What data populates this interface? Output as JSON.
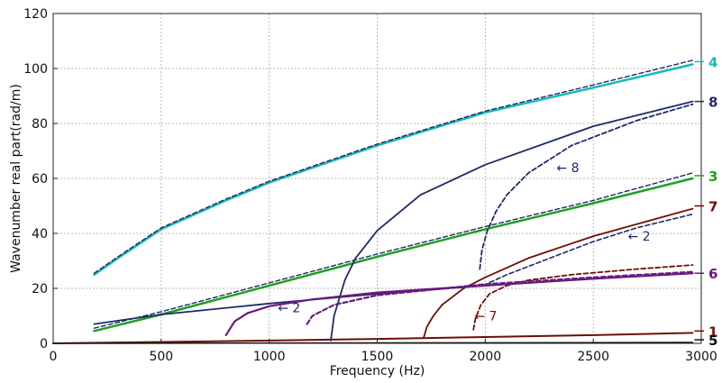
{
  "chart_data": {
    "type": "line",
    "title": "",
    "xlabel": "Frequency (Hz)",
    "ylabel": "Wavenumber real part(rad/m)",
    "xlim": [
      0,
      3000
    ],
    "ylim": [
      0,
      120
    ],
    "xticks": [
      0,
      500,
      1000,
      1500,
      2000,
      2500,
      3000
    ],
    "yticks": [
      0,
      20,
      40,
      60,
      80,
      100,
      120
    ],
    "grid": true,
    "legend": "none",
    "series": [
      {
        "key": "m4",
        "color": "#18b8b8",
        "width": 2.5,
        "dash": false,
        "x": [
          190,
          300,
          500,
          800,
          1000,
          1500,
          2000,
          2500,
          2960
        ],
        "y": [
          25,
          31,
          41.5,
          52,
          58.5,
          72,
          84,
          93,
          101.5
        ]
      },
      {
        "key": "m4d",
        "color": "#1e2a6a",
        "width": 1.4,
        "dash": true,
        "x": [
          190,
          300,
          500,
          800,
          1000,
          1500,
          2000,
          2500,
          2960
        ],
        "y": [
          25.5,
          31.5,
          42,
          52.5,
          59,
          72.5,
          84.5,
          94,
          103
        ]
      },
      {
        "key": "m3",
        "color": "#1ea01e",
        "width": 2.5,
        "dash": false,
        "x": [
          190,
          500,
          1000,
          1500,
          2000,
          2500,
          2960
        ],
        "y": [
          4.5,
          10.5,
          21,
          31.5,
          41.5,
          51,
          60
        ]
      },
      {
        "key": "m3d",
        "color": "#1e2a6a",
        "width": 1.4,
        "dash": true,
        "x": [
          190,
          500,
          1000,
          1500,
          2000,
          2500,
          2960
        ],
        "y": [
          5.5,
          11.5,
          22,
          32.5,
          42.5,
          52,
          62
        ]
      },
      {
        "key": "m8",
        "color": "#1e2a6a",
        "width": 1.8,
        "dash": false,
        "x": [
          1285,
          1300,
          1350,
          1400,
          1500,
          1700,
          2000,
          2500,
          2960
        ],
        "y": [
          1,
          10,
          23,
          31,
          41,
          54,
          65,
          79,
          88
        ]
      },
      {
        "key": "m8d",
        "color": "#1e2a6a",
        "width": 1.8,
        "dash": true,
        "x": [
          1975,
          1985,
          2010,
          2050,
          2100,
          2200,
          2400,
          2700,
          2960
        ],
        "y": [
          27,
          34,
          41,
          48,
          54,
          62,
          72,
          81,
          87
        ]
      },
      {
        "key": "m7",
        "color": "#6b1005",
        "width": 1.8,
        "dash": false,
        "x": [
          1715,
          1730,
          1760,
          1800,
          1900,
          2000,
          2200,
          2500,
          2960
        ],
        "y": [
          2,
          6,
          10,
          14,
          20,
          24,
          31,
          39,
          49
        ]
      },
      {
        "key": "m7d",
        "color": "#6b1005",
        "width": 1.8,
        "dash": true,
        "x": [
          1945,
          1955,
          1980,
          2020,
          2100,
          2200,
          2400,
          2700,
          2960
        ],
        "y": [
          5,
          9,
          14,
          18,
          21,
          23,
          25,
          27,
          28.5
        ]
      },
      {
        "key": "m2",
        "color": "#1e2a6a",
        "width": 1.8,
        "dash": false,
        "x": [
          190,
          500,
          1000,
          1500,
          2000,
          2500,
          2960
        ],
        "y": [
          7,
          10.5,
          14.5,
          18,
          21,
          23.5,
          25.5
        ]
      },
      {
        "key": "m2d",
        "color": "#1e2a6a",
        "width": 1.6,
        "dash": true,
        "x": [
          1990,
          2100,
          2300,
          2500,
          2700,
          2960
        ],
        "y": [
          21,
          25,
          31,
          37,
          42,
          47
        ]
      },
      {
        "key": "m6",
        "color": "#6a1a80",
        "width": 2.2,
        "dash": false,
        "x": [
          800,
          840,
          900,
          1000,
          1200,
          1500,
          2000,
          2500,
          2960
        ],
        "y": [
          3,
          8,
          11,
          13.5,
          16,
          18.5,
          21,
          23.5,
          25.5
        ]
      },
      {
        "key": "m6d",
        "color": "#6a1a80",
        "width": 2.2,
        "dash": true,
        "x": [
          1175,
          1200,
          1300,
          1500,
          2000,
          2500,
          2960
        ],
        "y": [
          7,
          10,
          14,
          17.5,
          21.5,
          24,
          26
        ]
      },
      {
        "key": "m1",
        "color": "#6b1005",
        "width": 2,
        "dash": false,
        "x": [
          0,
          500,
          1000,
          1500,
          2000,
          2500,
          2960
        ],
        "y": [
          0,
          0.5,
          1,
          1.6,
          2.3,
          3,
          3.8
        ]
      },
      {
        "key": "m5",
        "color": "#111111",
        "width": 1.6,
        "dash": false,
        "x": [
          0,
          1000,
          2000,
          2960
        ],
        "y": [
          0,
          0.1,
          0.2,
          0.3
        ]
      }
    ],
    "curve_labels": [
      {
        "text": "4",
        "x": 2960,
        "y": 102.5,
        "color": "#18b8b8"
      },
      {
        "text": "8",
        "x": 2960,
        "y": 88,
        "color": "#1e2a6a"
      },
      {
        "text": "3",
        "x": 2960,
        "y": 61,
        "color": "#1ea01e"
      },
      {
        "text": "7",
        "x": 2960,
        "y": 50,
        "color": "#6b1005"
      },
      {
        "text": "6",
        "x": 2960,
        "y": 25.5,
        "color": "#6a1a80"
      },
      {
        "text": "1",
        "x": 2960,
        "y": 4.5,
        "color": "#6b1005"
      },
      {
        "text": "5",
        "x": 2960,
        "y": 1.3,
        "color": "#111111"
      }
    ],
    "annotations": [
      {
        "text": "← 8",
        "x": 2330,
        "y": 64,
        "color": "#1e2a6a"
      },
      {
        "text": "← 2",
        "x": 2660,
        "y": 39,
        "color": "#1e2a6a"
      },
      {
        "text": "← 2",
        "x": 1040,
        "y": 13,
        "color": "#1e2a6a"
      },
      {
        "text": "← 7",
        "x": 1950,
        "y": 10,
        "color": "#6b1005"
      }
    ]
  }
}
